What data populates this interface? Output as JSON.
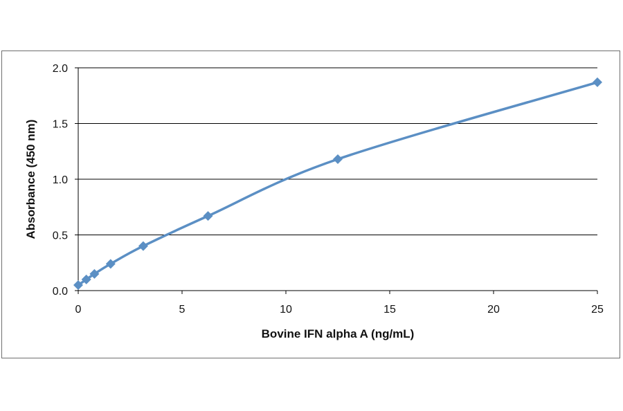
{
  "chart_data": {
    "type": "line",
    "title": "",
    "xlabel": "Bovine IFN alpha A (ng/mL)",
    "ylabel": "Absorbance  (450 nm)",
    "xlim": [
      0,
      25
    ],
    "ylim": [
      0,
      2.0
    ],
    "xticks": [
      0,
      5,
      10,
      15,
      20,
      25
    ],
    "xtick_labels": [
      "0",
      "5",
      "10",
      "15",
      "20",
      "25"
    ],
    "yticks": [
      0,
      0.5,
      1.0,
      1.5,
      2.0
    ],
    "ytick_labels": [
      "0.0",
      "0.5",
      "1.0",
      "1.5",
      "2.0"
    ],
    "grid": "horizontal",
    "legend": "none",
    "series": [
      {
        "marker": "diamond",
        "color": "#5b8fc4",
        "x": [
          0,
          0.39,
          0.78,
          1.56,
          3.13,
          6.25,
          12.5,
          25
        ],
        "y": [
          0.05,
          0.1,
          0.15,
          0.24,
          0.4,
          0.67,
          1.18,
          1.87
        ]
      }
    ]
  }
}
